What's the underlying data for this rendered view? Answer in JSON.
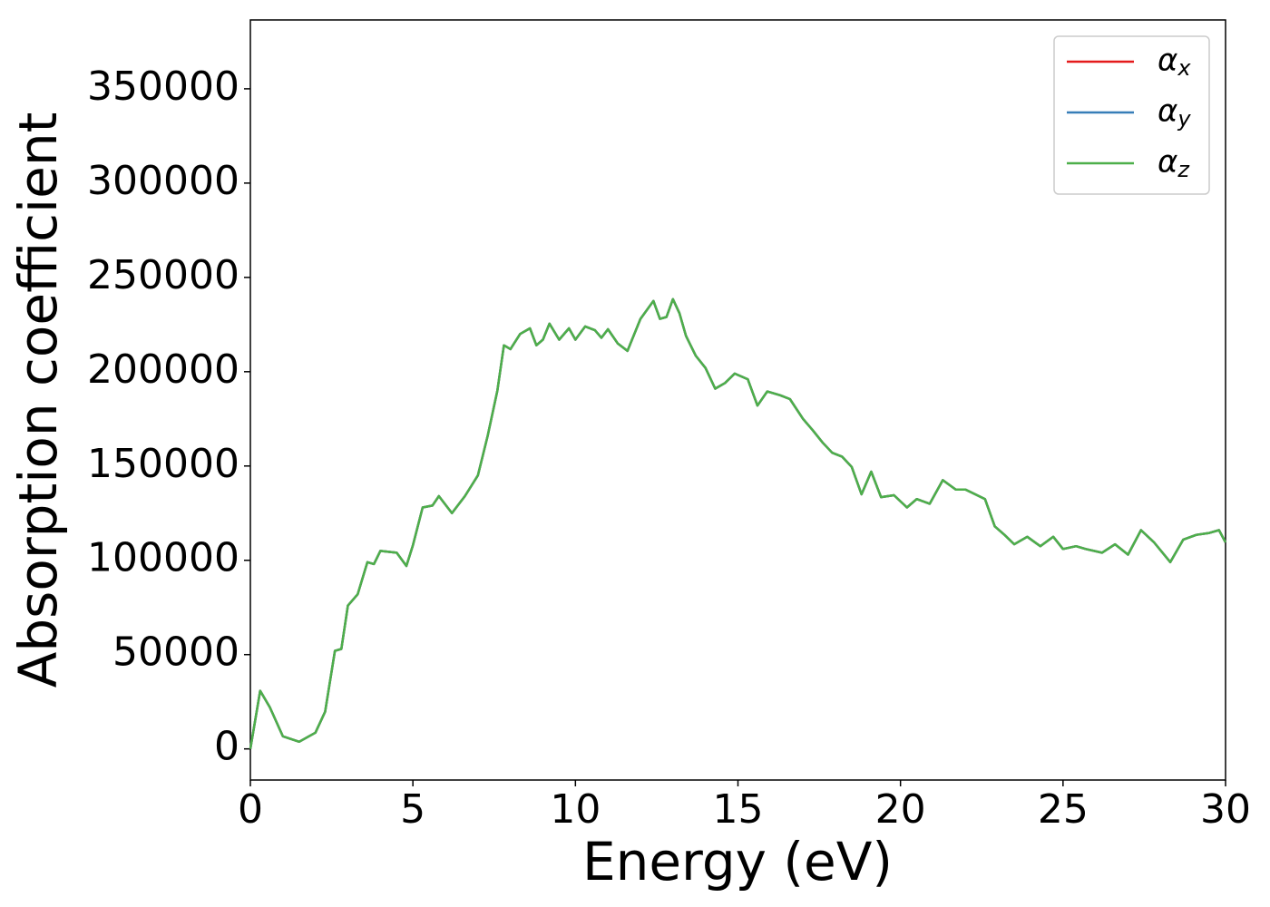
{
  "chart_data": {
    "type": "line",
    "xlabel": "Energy (eV)",
    "ylabel": "Absorption coefficient",
    "xlim": [
      0,
      30
    ],
    "ylim": [
      -16500,
      386500
    ],
    "xticks": [
      0,
      5,
      10,
      15,
      20,
      25,
      30
    ],
    "yticks": [
      0,
      50000,
      100000,
      150000,
      200000,
      250000,
      300000,
      350000
    ],
    "grid": false,
    "legend": "upper right",
    "x": [
      0,
      0.3,
      0.6,
      1.0,
      1.5,
      2.0,
      2.3,
      2.6,
      2.8,
      3.0,
      3.3,
      3.6,
      3.8,
      4.0,
      4.5,
      4.8,
      5.0,
      5.3,
      5.6,
      5.8,
      6.2,
      6.6,
      7.0,
      7.3,
      7.6,
      7.8,
      8.0,
      8.3,
      8.6,
      8.8,
      9.0,
      9.2,
      9.5,
      9.8,
      10.0,
      10.3,
      10.6,
      10.8,
      11.0,
      11.3,
      11.6,
      12.0,
      12.4,
      12.6,
      12.8,
      13.0,
      13.2,
      13.4,
      13.7,
      14.0,
      14.3,
      14.6,
      14.9,
      15.3,
      15.6,
      15.9,
      16.3,
      16.6,
      17.0,
      17.3,
      17.6,
      17.9,
      18.2,
      18.5,
      18.8,
      19.1,
      19.4,
      19.8,
      20.2,
      20.5,
      20.9,
      21.3,
      21.7,
      22.0,
      22.3,
      22.6,
      22.9,
      23.2,
      23.5,
      23.9,
      24.3,
      24.7,
      25.0,
      25.4,
      25.7,
      26.2,
      26.6,
      27.0,
      27.4,
      27.8,
      28.3,
      28.7,
      29.1,
      29.5,
      29.8,
      30.0
    ],
    "series": [
      {
        "name": "αx",
        "color": "#e41a1c",
        "values": [
          0,
          30800,
          22000,
          6700,
          3800,
          8600,
          19700,
          52000,
          53000,
          76000,
          82000,
          99000,
          98000,
          105000,
          104000,
          97000,
          108000,
          128000,
          129000,
          134000,
          125000,
          134000,
          145000,
          166000,
          190000,
          214000,
          212000,
          220000,
          223000,
          214000,
          217000,
          225500,
          217000,
          223000,
          217000,
          224000,
          222000,
          218000,
          222500,
          215000,
          211000,
          228000,
          237500,
          228000,
          229000,
          238500,
          231000,
          219000,
          208500,
          202000,
          191000,
          194000,
          199000,
          196000,
          182000,
          189500,
          187500,
          185500,
          175000,
          169000,
          162500,
          157000,
          155000,
          149500,
          135000,
          147000,
          133500,
          134500,
          128000,
          132500,
          130000,
          142500,
          137500,
          137500,
          135000,
          132500,
          118000,
          113500,
          108500,
          112500,
          107500,
          112500,
          106000,
          107500,
          106000,
          104000,
          108500,
          103000,
          116000,
          109500,
          99000,
          111000,
          113500,
          114500,
          116000,
          109500
        ]
      },
      {
        "name": "αy",
        "color": "#377eb8",
        "values": [
          0,
          30800,
          22000,
          6700,
          3800,
          8600,
          19700,
          52000,
          53000,
          76000,
          82000,
          99000,
          98000,
          105000,
          104000,
          97000,
          108000,
          128000,
          129000,
          134000,
          125000,
          134000,
          145000,
          166000,
          190000,
          214000,
          212000,
          220000,
          223000,
          214000,
          217000,
          225500,
          217000,
          223000,
          217000,
          224000,
          222000,
          218000,
          222500,
          215000,
          211000,
          228000,
          237500,
          228000,
          229000,
          238500,
          231000,
          219000,
          208500,
          202000,
          191000,
          194000,
          199000,
          196000,
          182000,
          189500,
          187500,
          185500,
          175000,
          169000,
          162500,
          157000,
          155000,
          149500,
          135000,
          147000,
          133500,
          134500,
          128000,
          132500,
          130000,
          142500,
          137500,
          137500,
          135000,
          132500,
          118000,
          113500,
          108500,
          112500,
          107500,
          112500,
          106000,
          107500,
          106000,
          104000,
          108500,
          103000,
          116000,
          109500,
          99000,
          111000,
          113500,
          114500,
          116000,
          109500
        ]
      },
      {
        "name": "αz",
        "color": "#4daf4a",
        "values": [
          0,
          30800,
          22000,
          6700,
          3800,
          8600,
          19700,
          52000,
          53000,
          76000,
          82000,
          99000,
          98000,
          105000,
          104000,
          97000,
          108000,
          128000,
          129000,
          134000,
          125000,
          134000,
          145000,
          166000,
          190000,
          214000,
          212000,
          220000,
          223000,
          214000,
          217000,
          225500,
          217000,
          223000,
          217000,
          224000,
          222000,
          218000,
          222500,
          215000,
          211000,
          228000,
          237500,
          228000,
          229000,
          238500,
          231000,
          219000,
          208500,
          202000,
          191000,
          194000,
          199000,
          196000,
          182000,
          189500,
          187500,
          185500,
          175000,
          169000,
          162500,
          157000,
          155000,
          149500,
          135000,
          147000,
          133500,
          134500,
          128000,
          132500,
          130000,
          142500,
          137500,
          137500,
          135000,
          132500,
          118000,
          113500,
          108500,
          112500,
          107500,
          112500,
          106000,
          107500,
          106000,
          104000,
          108500,
          103000,
          116000,
          109500,
          99000,
          111000,
          113500,
          114500,
          116000,
          109500
        ]
      }
    ]
  }
}
